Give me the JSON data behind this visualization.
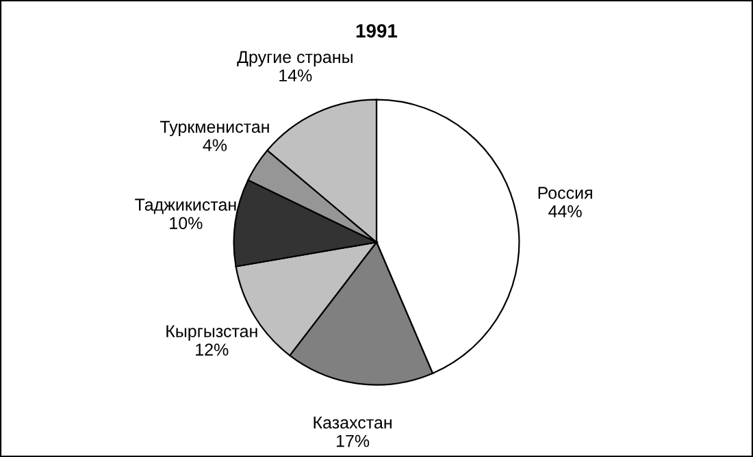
{
  "chart_data": {
    "type": "pie",
    "title": "1991",
    "categories": [
      "Россия",
      "Казахстан",
      "Кыргызстан",
      "Таджикистан",
      "Туркменистан",
      "Другие страны"
    ],
    "values": [
      44,
      17,
      12,
      10,
      4,
      14
    ],
    "value_labels": [
      "44%",
      "17%",
      "12%",
      "10%",
      "4%",
      "14%"
    ],
    "colors": [
      "#ffffff",
      "#808080",
      "#c0c0c0",
      "#333333",
      "#969696",
      "#c0c0c0"
    ],
    "legend": false
  }
}
